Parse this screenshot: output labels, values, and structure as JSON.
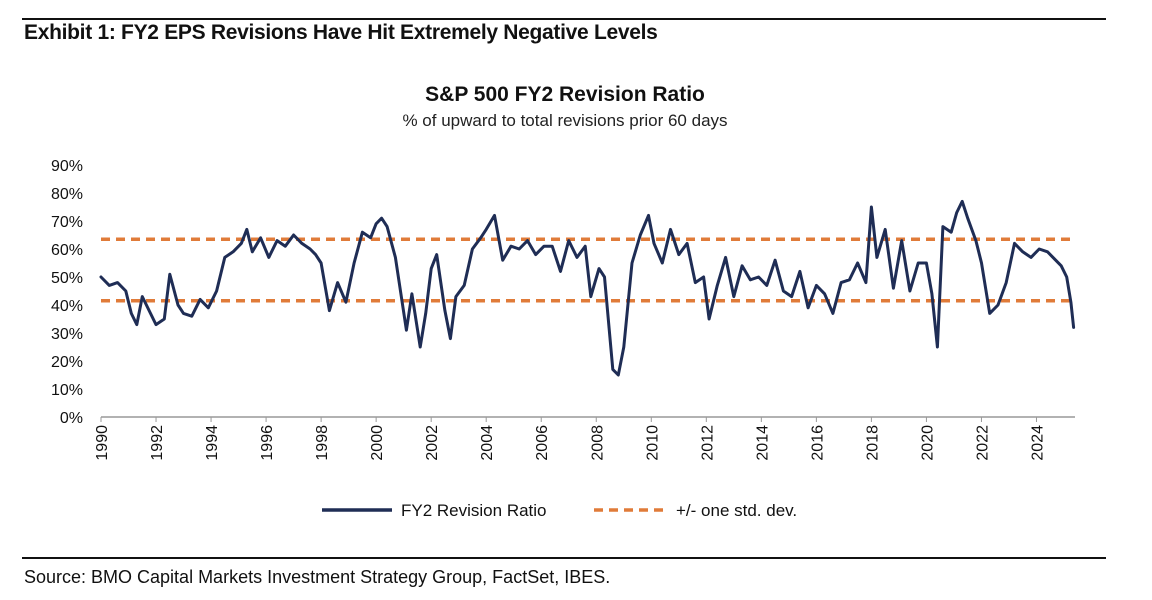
{
  "exhibit_title": "Exhibit 1: FY2 EPS Revisions Have Hit Extremely Negative Levels",
  "source": "Source: BMO Capital Markets Investment Strategy Group, FactSet, IBES.",
  "colors": {
    "series": "#1f2d55",
    "band": "#e07b39",
    "axis": "#999999"
  },
  "chart_data": {
    "type": "line",
    "title": "S&P 500 FY2 Revision Ratio",
    "subtitle": "% of upward to total revisions prior 60 days",
    "xlabel": "",
    "ylabel": "",
    "xlim": [
      1990,
      2025.4
    ],
    "ylim": [
      0,
      90
    ],
    "yticks": [
      0,
      10,
      20,
      30,
      40,
      50,
      60,
      70,
      80,
      90
    ],
    "ytick_labels": [
      "0%",
      "10%",
      "20%",
      "30%",
      "40%",
      "50%",
      "60%",
      "70%",
      "80%",
      "90%"
    ],
    "xticks": [
      1990,
      1992,
      1994,
      1996,
      1998,
      2000,
      2002,
      2004,
      2006,
      2008,
      2010,
      2012,
      2014,
      2016,
      2018,
      2020,
      2022,
      2024
    ],
    "xtick_labels": [
      "1990",
      "1992",
      "1994",
      "1996",
      "1998",
      "2000",
      "2002",
      "2004",
      "2006",
      "2008",
      "2010",
      "2012",
      "2014",
      "2016",
      "2018",
      "2020",
      "2022",
      "2024"
    ],
    "legend_position": "bottom-center",
    "series": [
      {
        "name": "FY2 Revision Ratio",
        "style": "solid",
        "x": [
          1990.0,
          1990.3,
          1990.6,
          1990.9,
          1991.1,
          1991.3,
          1991.5,
          1991.8,
          1992.0,
          1992.3,
          1992.5,
          1992.8,
          1993.0,
          1993.3,
          1993.6,
          1993.9,
          1994.2,
          1994.5,
          1994.8,
          1995.1,
          1995.3,
          1995.5,
          1995.8,
          1996.1,
          1996.4,
          1996.7,
          1997.0,
          1997.3,
          1997.6,
          1997.8,
          1998.0,
          1998.3,
          1998.6,
          1998.9,
          1999.2,
          1999.5,
          1999.8,
          2000.0,
          2000.2,
          2000.4,
          2000.7,
          2000.9,
          2001.1,
          2001.3,
          2001.6,
          2001.8,
          2002.0,
          2002.2,
          2002.5,
          2002.7,
          2002.9,
          2003.2,
          2003.5,
          2003.8,
          2004.0,
          2004.3,
          2004.6,
          2004.9,
          2005.2,
          2005.5,
          2005.8,
          2006.1,
          2006.4,
          2006.7,
          2007.0,
          2007.3,
          2007.6,
          2007.8,
          2008.1,
          2008.3,
          2008.6,
          2008.8,
          2009.0,
          2009.3,
          2009.6,
          2009.9,
          2010.1,
          2010.4,
          2010.7,
          2011.0,
          2011.3,
          2011.6,
          2011.9,
          2012.1,
          2012.4,
          2012.7,
          2013.0,
          2013.3,
          2013.6,
          2013.9,
          2014.2,
          2014.5,
          2014.8,
          2015.1,
          2015.4,
          2015.7,
          2016.0,
          2016.3,
          2016.6,
          2016.9,
          2017.2,
          2017.5,
          2017.8,
          2018.0,
          2018.2,
          2018.5,
          2018.8,
          2019.1,
          2019.4,
          2019.7,
          2020.0,
          2020.2,
          2020.4,
          2020.6,
          2020.9,
          2021.1,
          2021.3,
          2021.5,
          2021.8,
          2022.0,
          2022.3,
          2022.6,
          2022.9,
          2023.2,
          2023.5,
          2023.8,
          2024.1,
          2024.4,
          2024.7,
          2024.9,
          2025.1,
          2025.25,
          2025.35
        ],
        "values": [
          50,
          47,
          48,
          45,
          37,
          33,
          43,
          37,
          33,
          35,
          51,
          40,
          37,
          36,
          42,
          39,
          45,
          57,
          59,
          62,
          67,
          59,
          64,
          57,
          63,
          61,
          65,
          62,
          60,
          58,
          55,
          38,
          48,
          41,
          55,
          66,
          64,
          69,
          71,
          68,
          57,
          44,
          31,
          44,
          25,
          37,
          53,
          58,
          38,
          28,
          43,
          47,
          60,
          64,
          67,
          72,
          56,
          61,
          60,
          63,
          58,
          61,
          61,
          52,
          63,
          57,
          61,
          43,
          53,
          50,
          17,
          15,
          25,
          55,
          65,
          72,
          62,
          55,
          67,
          58,
          62,
          48,
          50,
          35,
          47,
          57,
          43,
          54,
          49,
          50,
          47,
          56,
          45,
          43,
          52,
          39,
          47,
          44,
          37,
          48,
          49,
          55,
          48,
          75,
          57,
          67,
          46,
          63,
          45,
          55,
          55,
          44,
          25,
          68,
          66,
          73,
          77,
          71,
          63,
          55,
          37,
          40,
          48,
          62,
          59,
          57,
          60,
          59,
          56,
          54,
          50,
          41,
          32
        ]
      },
      {
        "name": "+/- one std. dev.",
        "style": "dashed",
        "bands": [
          63.5,
          41.5
        ]
      }
    ]
  }
}
